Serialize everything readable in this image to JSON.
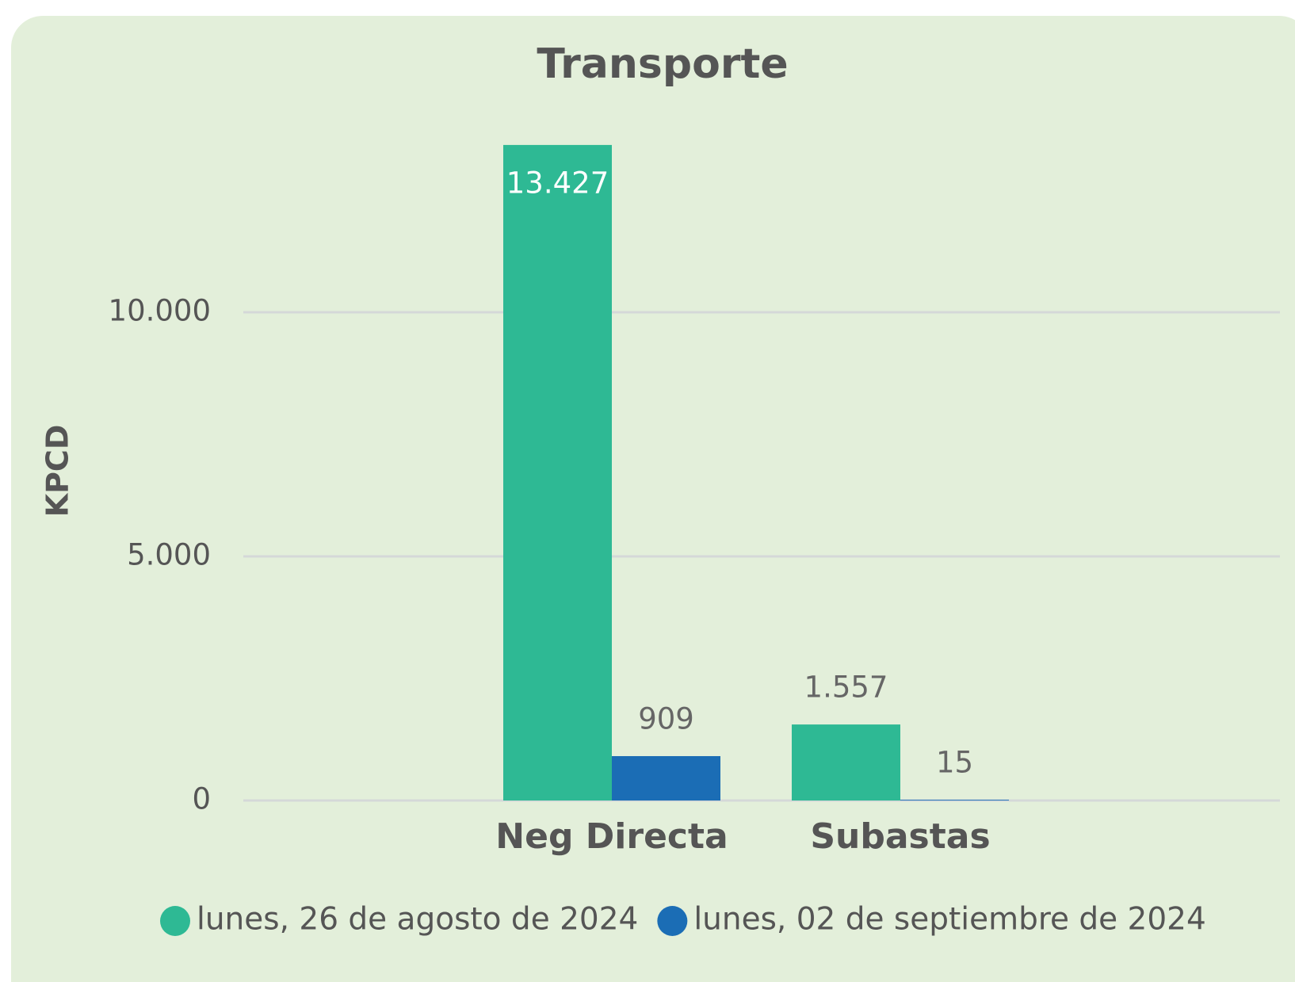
{
  "chart_data": {
    "type": "bar",
    "title": "Transporte",
    "y_label": "KPCD",
    "categories": [
      "Neg Directa",
      "Subastas"
    ],
    "series": [
      {
        "name": "lunes, 26 de agosto de 2024",
        "color": "#2eb994",
        "values": [
          13427,
          1557
        ],
        "value_labels": [
          "13.427",
          "1.557"
        ]
      },
      {
        "name": "lunes, 02 de septiembre de 2024",
        "color": "#1b6db5",
        "values": [
          909,
          15
        ],
        "value_labels": [
          "909",
          "15"
        ]
      }
    ],
    "ylim": [
      0,
      14000
    ],
    "yticks": [
      {
        "value": 0,
        "label": "0"
      },
      {
        "value": 5000,
        "label": "5.000"
      },
      {
        "value": 10000,
        "label": "10.000"
      }
    ],
    "grid": true,
    "legend": "bottom"
  }
}
